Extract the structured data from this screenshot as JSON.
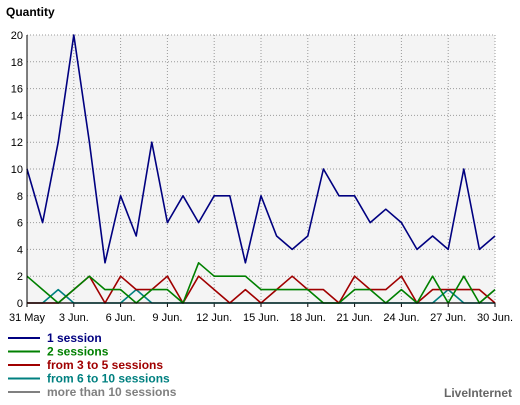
{
  "chart_data": {
    "type": "line",
    "title": "Quantity",
    "xlabel": "",
    "ylabel": "",
    "ylim": [
      0,
      20
    ],
    "y_ticks": [
      0,
      2,
      4,
      6,
      8,
      10,
      12,
      14,
      16,
      18,
      20
    ],
    "grid": true,
    "legend_position": "bottom-left",
    "x": [
      "31 May",
      "1 Jun.",
      "2 Jun.",
      "3 Jun.",
      "4 Jun.",
      "5 Jun.",
      "6 Jun.",
      "7 Jun.",
      "8 Jun.",
      "9 Jun.",
      "10 Jun.",
      "11 Jun.",
      "12 Jun.",
      "13 Jun.",
      "14 Jun.",
      "15 Jun.",
      "16 Jun.",
      "17 Jun.",
      "18 Jun.",
      "19 Jun.",
      "20 Jun.",
      "21 Jun.",
      "22 Jun.",
      "23 Jun.",
      "24 Jun.",
      "25 Jun.",
      "26 Jun.",
      "27 Jun.",
      "28 Jun.",
      "29 Jun.",
      "30 Jun."
    ],
    "x_tick_labels": [
      {
        "index": 0,
        "label": "31 May"
      },
      {
        "index": 3,
        "label": "3 Jun."
      },
      {
        "index": 6,
        "label": "6 Jun."
      },
      {
        "index": 9,
        "label": "9 Jun."
      },
      {
        "index": 12,
        "label": "12 Jun."
      },
      {
        "index": 15,
        "label": "15 Jun."
      },
      {
        "index": 18,
        "label": "18 Jun."
      },
      {
        "index": 21,
        "label": "21 Jun."
      },
      {
        "index": 24,
        "label": "24 Jun."
      },
      {
        "index": 27,
        "label": "27 Jun."
      },
      {
        "index": 30,
        "label": "30 Jun."
      }
    ],
    "series": [
      {
        "name": "1 session",
        "color": "#000080",
        "values": [
          10,
          6,
          12,
          20,
          12,
          3,
          8,
          5,
          12,
          6,
          8,
          6,
          8,
          8,
          3,
          8,
          5,
          4,
          5,
          10,
          8,
          8,
          6,
          7,
          6,
          4,
          5,
          4,
          10,
          4,
          5
        ]
      },
      {
        "name": "2 sessions",
        "color": "#008000",
        "values": [
          2,
          1,
          0,
          1,
          2,
          1,
          1,
          0,
          1,
          1,
          0,
          3,
          2,
          2,
          2,
          1,
          1,
          1,
          1,
          0,
          0,
          1,
          1,
          0,
          1,
          0,
          2,
          0,
          2,
          0,
          1
        ]
      },
      {
        "name": "from 3 to 5 sessions",
        "color": "#a00000",
        "values": [
          0,
          0,
          0,
          1,
          2,
          0,
          2,
          1,
          1,
          2,
          0,
          2,
          1,
          0,
          1,
          0,
          1,
          2,
          1,
          1,
          0,
          2,
          1,
          1,
          2,
          0,
          1,
          1,
          1,
          1,
          0
        ]
      },
      {
        "name": "from 6 to 10 sessions",
        "color": "#008080",
        "values": [
          0,
          0,
          1,
          0,
          0,
          0,
          0,
          1,
          0,
          0,
          0,
          0,
          0,
          0,
          0,
          0,
          0,
          0,
          0,
          0,
          0,
          0,
          0,
          0,
          0,
          0,
          0,
          1,
          0,
          0,
          0
        ]
      },
      {
        "name": "more than 10 sessions",
        "color": "#808080",
        "values": [
          0,
          0,
          0,
          0,
          0,
          0,
          0,
          0,
          0,
          0,
          0,
          0,
          0,
          0,
          0,
          0,
          0,
          0,
          0,
          0,
          0,
          0,
          0,
          0,
          0,
          0,
          0,
          0,
          0,
          0,
          1
        ]
      }
    ]
  },
  "branding": {
    "text": "LiveInternet"
  },
  "colors": {
    "plot_background": "#f4f4f4",
    "grid": "#9a9a9a"
  }
}
